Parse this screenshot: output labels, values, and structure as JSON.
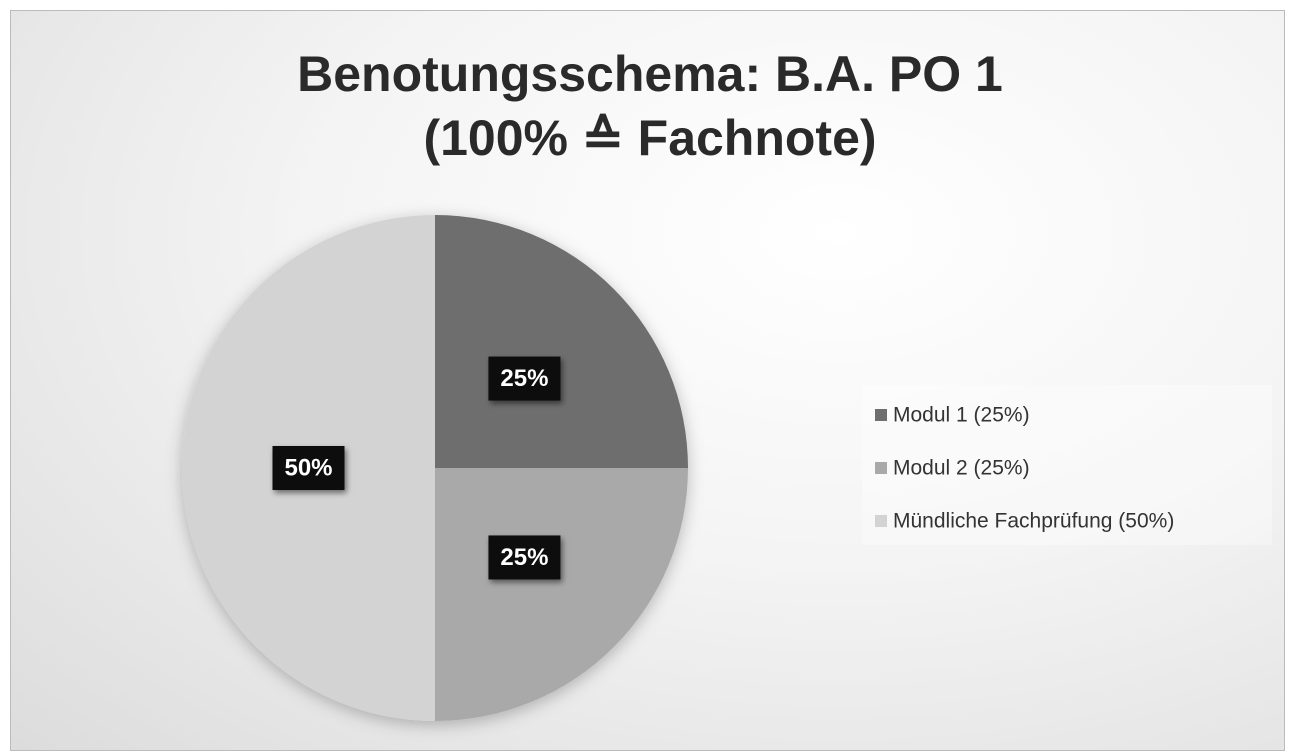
{
  "chart_data": {
    "type": "pie",
    "title": "Benotungsschema: B.A. PO 1",
    "subtitle": "(100% ≙ Fachnote)",
    "categories": [
      "Modul 1 (25%)",
      "Modul 2 (25%)",
      "Mündliche Fachprüfung (50%)"
    ],
    "values": [
      25,
      25,
      50
    ],
    "value_labels": [
      "25%",
      "25%",
      "50%"
    ],
    "colors": [
      "#6e6e6e",
      "#a9a9a9",
      "#d3d3d3"
    ],
    "legend": "right"
  }
}
